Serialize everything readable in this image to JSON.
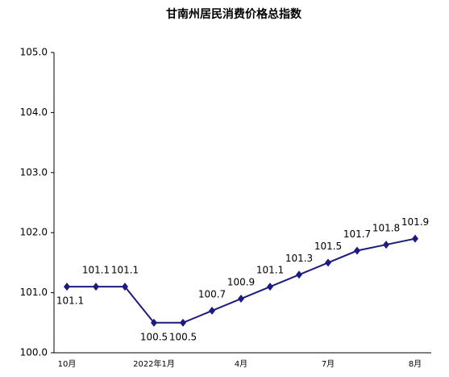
{
  "chart_data": {
    "type": "line",
    "title": "甘南州居民消费价格总指数",
    "categories": [
      "10月",
      null,
      null,
      "2022年1月",
      null,
      null,
      "4月",
      null,
      null,
      "7月",
      null,
      null,
      "8月"
    ],
    "series": [
      {
        "name": "居民消费价格总指数",
        "color": "#1c1c80",
        "values": [
          101.1,
          101.1,
          101.1,
          100.5,
          100.5,
          100.7,
          100.9,
          101.1,
          101.3,
          101.5,
          101.7,
          101.8,
          101.9
        ]
      }
    ],
    "ylim": [
      100,
      105
    ],
    "yticks": [
      {
        "value": 100,
        "label": "100.0"
      },
      {
        "value": 101,
        "label": "101.0"
      },
      {
        "value": 102,
        "label": "102.0"
      },
      {
        "value": 103,
        "label": "103.0"
      },
      {
        "value": 104,
        "label": "104.0"
      },
      {
        "value": 105,
        "label": "105.0"
      }
    ]
  }
}
